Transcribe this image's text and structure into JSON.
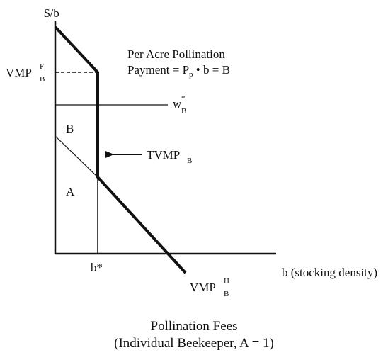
{
  "y_axis_label": "$/b",
  "x_axis_label": "b (stocking density)",
  "vmp_f": {
    "base": "VMP",
    "sub": "B",
    "sup": "F"
  },
  "vmp_h": {
    "base": "VMP",
    "sub": "B",
    "sup": "H"
  },
  "wage": {
    "base": "w",
    "sub": "B",
    "sup": "*"
  },
  "tvmp": {
    "base": "TVMP",
    "sub": "B"
  },
  "b_star": "b*",
  "area_b": "B",
  "area_a": "A",
  "payment_note": {
    "line1": "Per Acre Pollination",
    "pre": "Payment = P",
    "sub": "p",
    "post": " • b = B"
  },
  "caption": {
    "line1": "Pollination Fees",
    "line2": "(Individual Beekeeper, A = 1)"
  }
}
